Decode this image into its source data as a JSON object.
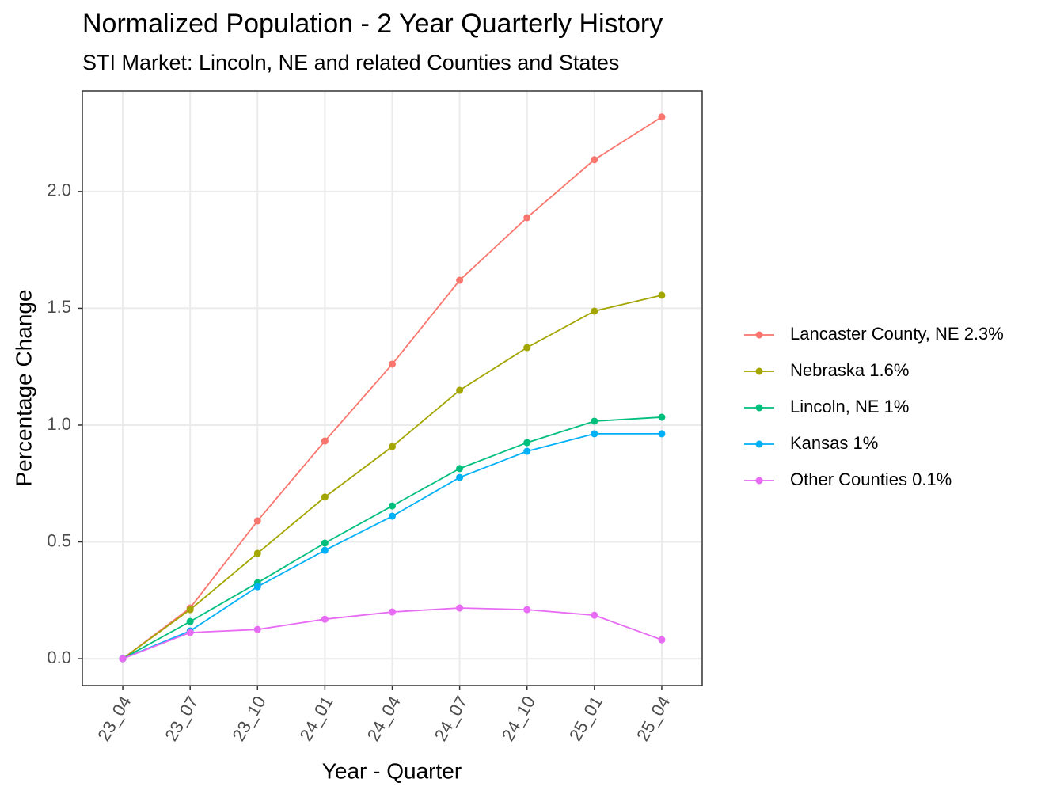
{
  "chart_data": {
    "type": "line",
    "title": "Normalized Population - 2 Year Quarterly History",
    "subtitle": "STI Market: Lincoln, NE and related Counties and States",
    "x_label": "Year - Quarter",
    "y_label": "Percentage Change",
    "categories": [
      "23_04",
      "23_07",
      "23_10",
      "24_01",
      "24_04",
      "24_07",
      "24_10",
      "25_01",
      "25_04"
    ],
    "series": [
      {
        "name": "Lancaster County, NE 2.3%",
        "color": "#F8766D",
        "values": [
          0,
          0.217,
          0.59,
          0.932,
          1.261,
          1.62,
          1.888,
          2.136,
          2.319
        ]
      },
      {
        "name": "Nebraska 1.6%",
        "color": "#A3A500",
        "values": [
          0,
          0.21,
          0.451,
          0.692,
          0.908,
          1.149,
          1.332,
          1.488,
          1.556
        ]
      },
      {
        "name": "Lincoln, NE 1%",
        "color": "#00BF7D",
        "values": [
          0,
          0.159,
          0.325,
          0.495,
          0.654,
          0.814,
          0.925,
          1.017,
          1.034
        ]
      },
      {
        "name": "Kansas 1%",
        "color": "#00B0F6",
        "values": [
          0,
          0.119,
          0.308,
          0.464,
          0.61,
          0.776,
          0.888,
          0.963,
          0.963
        ]
      },
      {
        "name": "Other Counties 0.1%",
        "color": "#E76BF3",
        "values": [
          0,
          0.112,
          0.125,
          0.169,
          0.2,
          0.217,
          0.21,
          0.186,
          0.081
        ]
      }
    ],
    "ylim": [
      -0.115,
      2.43
    ],
    "yticks": [
      {
        "value": 0,
        "label": "0.0"
      },
      0.5,
      {
        "value": 1,
        "label": "1.0"
      },
      1.5,
      {
        "value": 2,
        "label": "2.0"
      }
    ],
    "grid": true,
    "legend": "right"
  }
}
